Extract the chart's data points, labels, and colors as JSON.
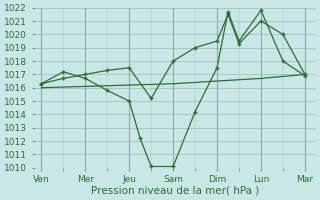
{
  "background_color": "#c8e8e8",
  "grid_color": "#a0b8b8",
  "line_color": "#2d6e2d",
  "x_labels": [
    "Ven",
    "Mer",
    "Jeu",
    "Sam",
    "Dim",
    "Lun",
    "Mar"
  ],
  "x_tick_pos": [
    0,
    2,
    4,
    6,
    8,
    10,
    12
  ],
  "ylim": [
    1010,
    1022
  ],
  "yticks": [
    1010,
    1011,
    1012,
    1013,
    1014,
    1015,
    1016,
    1017,
    1018,
    1019,
    1020,
    1021,
    1022
  ],
  "xlabel": "Pression niveau de la mer( hPa )",
  "xlabel_fontsize": 7.5,
  "tick_fontsize": 6.5,
  "series1": {
    "x": [
      0,
      1,
      2,
      3,
      4,
      4.5,
      5,
      6,
      7,
      8,
      8.5,
      9,
      10,
      11,
      12
    ],
    "y": [
      1016.3,
      1017.2,
      1016.7,
      1015.8,
      1015.0,
      1012.2,
      1010.1,
      1010.1,
      1014.2,
      1017.5,
      1021.7,
      1019.5,
      1021.8,
      1018.0,
      1016.9
    ]
  },
  "series2": {
    "x": [
      0,
      1,
      2,
      3,
      4,
      5,
      6,
      7,
      8,
      8.5,
      9,
      10,
      11,
      12
    ],
    "y": [
      1016.3,
      1016.7,
      1017.0,
      1017.3,
      1017.5,
      1015.2,
      1018.0,
      1019.0,
      1019.5,
      1021.5,
      1019.3,
      1021.0,
      1020.0,
      1017.0
    ]
  },
  "series3": {
    "x": [
      0,
      2,
      4,
      6,
      8,
      10,
      12
    ],
    "y": [
      1016.0,
      1016.1,
      1016.2,
      1016.3,
      1016.5,
      1016.7,
      1017.0
    ]
  }
}
